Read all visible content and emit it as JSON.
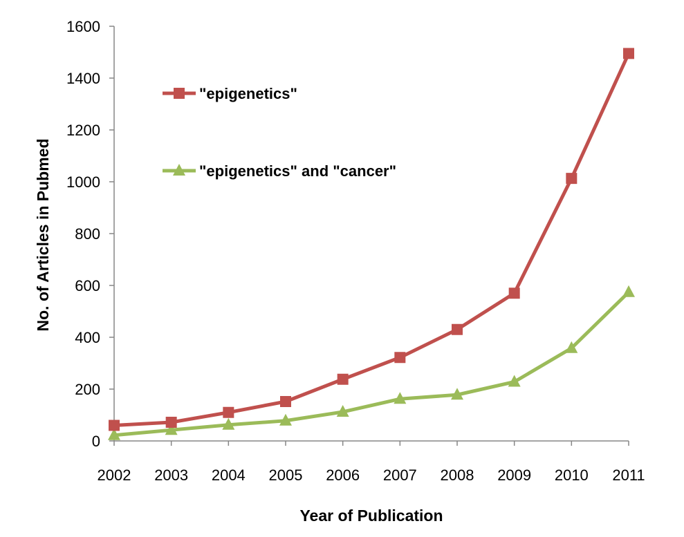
{
  "chart_data": {
    "type": "line",
    "title": "",
    "xlabel": "Year of Publication",
    "ylabel": "No. of Articles in Pubmed",
    "categories": [
      "2002",
      "2003",
      "2004",
      "2005",
      "2006",
      "2007",
      "2008",
      "2009",
      "2010",
      "2011"
    ],
    "ylim": [
      0,
      1600
    ],
    "yticks": [
      "0",
      "200",
      "400",
      "600",
      "800",
      "1000",
      "1200",
      "1400",
      "1600"
    ],
    "grid": false,
    "legend_position": "top-left",
    "series": [
      {
        "name": "\"epigenetics\"",
        "color": "#c0504d",
        "marker": "square",
        "values": [
          60,
          72,
          110,
          152,
          238,
          322,
          430,
          570,
          1013,
          1495
        ]
      },
      {
        "name": "\"epigenetics\" and \"cancer\"",
        "color": "#9bbb59",
        "marker": "triangle",
        "values": [
          22,
          42,
          62,
          78,
          112,
          162,
          178,
          228,
          358,
          574
        ]
      }
    ]
  }
}
